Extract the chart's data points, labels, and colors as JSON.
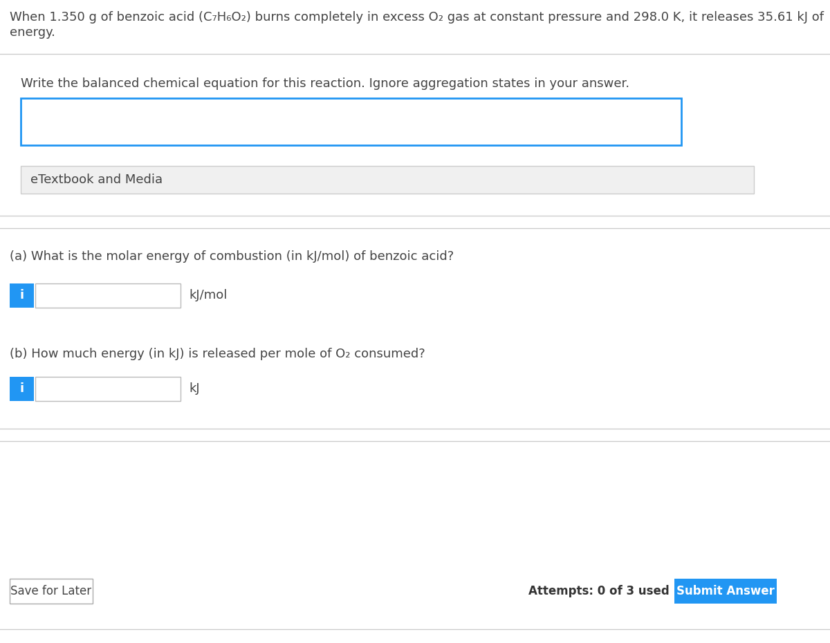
{
  "bg_color": "#ffffff",
  "header_text_line1": "When 1.350 g of benzoic acid (C₇H₆O₂) burns completely in excess O₂ gas at constant pressure and 298.0 K, it releases 35.61 kJ of",
  "header_text_line2": "energy.",
  "divider_color": "#cccccc",
  "section1_label": "Write the balanced chemical equation for this reaction. Ignore aggregation states in your answer.",
  "input_box_border_color": "#2196F3",
  "etextbook_label": "eTextbook and Media",
  "etextbook_bg": "#f0f0f0",
  "etextbook_border": "#cccccc",
  "part_a_label": "(a) What is the molar energy of combustion (in kJ/mol) of benzoic acid?",
  "part_a_unit": "kJ/mol",
  "part_b_label": "(b) How much energy (in kJ) is released per mole of O₂ consumed?",
  "part_b_unit": "kJ",
  "info_btn_color": "#2196F3",
  "info_btn_text": "i",
  "input_bg": "#ffffff",
  "input_border": "#bbbbbb",
  "save_btn_label": "Save for Later",
  "save_btn_border": "#aaaaaa",
  "attempts_text": "Attempts: 0 of 3 used",
  "submit_btn_label": "Submit Answer",
  "submit_btn_color": "#2196F3",
  "text_color": "#444444",
  "font_size_header": 13,
  "font_size_body": 13,
  "font_size_btn": 12
}
